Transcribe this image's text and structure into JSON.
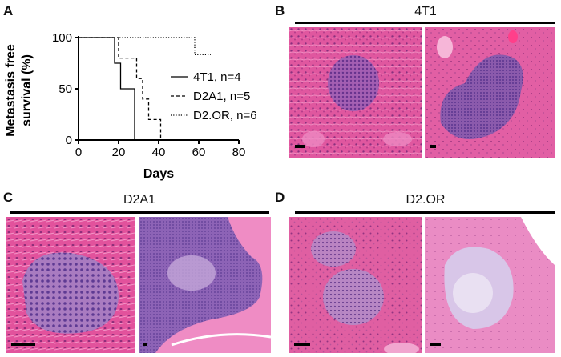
{
  "panels": {
    "A": {
      "letter": "A"
    },
    "B": {
      "letter": "B",
      "title": "4T1"
    },
    "C": {
      "letter": "C",
      "title": "D2A1"
    },
    "D": {
      "letter": "D",
      "title": "D2.OR"
    }
  },
  "chart_data": {
    "type": "line",
    "step": true,
    "ylabel_line1": "Metastasis free",
    "ylabel_line2": "survival (%)",
    "xlabel": "Days",
    "xlim": [
      0,
      80
    ],
    "ylim": [
      0,
      100
    ],
    "xticks": [
      0,
      20,
      40,
      60,
      80
    ],
    "yticks": [
      0,
      50,
      100
    ],
    "legend_position": "right",
    "series": [
      {
        "name": "4T1, n=4",
        "style": "solid",
        "x": [
          0,
          18,
          18,
          21,
          21,
          28,
          28
        ],
        "y": [
          100,
          100,
          75,
          75,
          50,
          50,
          0
        ]
      },
      {
        "name": "D2A1, n=5",
        "style": "dashed",
        "x": [
          0,
          20,
          20,
          29,
          29,
          32,
          32,
          35,
          35,
          41,
          41
        ],
        "y": [
          100,
          100,
          80,
          80,
          60,
          60,
          40,
          40,
          20,
          20,
          0
        ]
      },
      {
        "name": "D2.OR, n=6",
        "style": "dotted",
        "x": [
          0,
          58,
          58,
          62,
          62,
          66
        ],
        "y": [
          100,
          100,
          83.3,
          83.3,
          83.3,
          83.3
        ]
      }
    ]
  },
  "colors": {
    "tissue_pink": "#e24a9a",
    "tissue_light": "#ec9ccc",
    "tumor_purple": "#7b56b0",
    "tumor_pale": "#c6a6d6"
  }
}
